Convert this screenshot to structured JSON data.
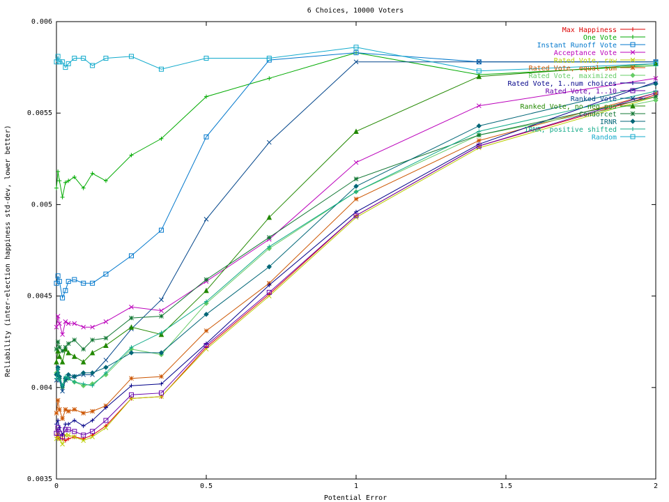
{
  "chart_data": {
    "type": "line",
    "title": "6 Choices, 10000 Voters",
    "xlabel": "Potential Error",
    "ylabel": "Reliability (inter-election happiness std-dev, lower better)",
    "xlim": [
      0,
      2
    ],
    "ylim": [
      0.0035,
      0.006
    ],
    "xticks": [
      0,
      0.5,
      1,
      1.5,
      2
    ],
    "xtick_labels": [
      "0",
      "0.5",
      "1",
      "1.5",
      "2"
    ],
    "yticks": [
      0.0035,
      0.004,
      0.0045,
      0.005,
      0.0055,
      0.006
    ],
    "ytick_labels": [
      "0.0035",
      "0.004",
      "0.0045",
      "0.005",
      "0.0055",
      "0.006"
    ],
    "grid": false,
    "legend_position": "top-right",
    "x": [
      0,
      0.005,
      0.01,
      0.02,
      0.03,
      0.04,
      0.06,
      0.09,
      0.12,
      0.165,
      0.25,
      0.35,
      0.5,
      0.71,
      1.0,
      1.41,
      2.0
    ],
    "series": [
      {
        "name": "Max Happiness",
        "color": "#dd0000",
        "marker": "plus",
        "values": [
          0.00374,
          0.00373,
          0.00372,
          0.00372,
          0.00371,
          0.00372,
          0.00373,
          0.00372,
          0.00374,
          0.00379,
          0.00394,
          0.00395,
          0.00422,
          0.00451,
          0.00494,
          0.00532,
          0.0056
        ]
      },
      {
        "name": "One Vote",
        "color": "#00aa00",
        "marker": "plus",
        "values": [
          0.00509,
          0.00518,
          0.00513,
          0.00504,
          0.00512,
          0.00513,
          0.00515,
          0.00509,
          0.00517,
          0.00513,
          0.00527,
          0.00536,
          0.00559,
          0.00569,
          0.00583,
          0.00571,
          0.00576
        ]
      },
      {
        "name": "Instant Runoff Vote",
        "color": "#0077cc",
        "marker": "square",
        "values": [
          0.00457,
          0.00461,
          0.00458,
          0.00449,
          0.00453,
          0.00458,
          0.00459,
          0.00457,
          0.00457,
          0.00462,
          0.00472,
          0.00486,
          0.00537,
          0.00579,
          0.00583,
          0.00578,
          0.00578
        ]
      },
      {
        "name": "Acceptance Vote",
        "color": "#bb00bb",
        "marker": "cross",
        "values": [
          0.00433,
          0.00439,
          0.00435,
          0.00429,
          0.00436,
          0.00435,
          0.00435,
          0.00433,
          0.00433,
          0.00436,
          0.00444,
          0.00442,
          0.00458,
          0.00481,
          0.00523,
          0.00554,
          0.00569
        ]
      },
      {
        "name": "Rated Vote, raw",
        "color": "#bbcc00",
        "marker": "cross",
        "values": [
          0.00372,
          0.00375,
          0.00372,
          0.00369,
          0.00374,
          0.00374,
          0.00373,
          0.00371,
          0.00373,
          0.00378,
          0.00394,
          0.00395,
          0.00421,
          0.0045,
          0.00493,
          0.00531,
          0.00559
        ]
      },
      {
        "name": "Rated Vote, equal sum",
        "color": "#cc5500",
        "marker": "star",
        "values": [
          0.00386,
          0.00393,
          0.00388,
          0.00383,
          0.00388,
          0.00387,
          0.00388,
          0.00386,
          0.00387,
          0.0039,
          0.00405,
          0.00406,
          0.00431,
          0.00457,
          0.00503,
          0.00535,
          0.00561
        ]
      },
      {
        "name": "Rated Vote, maximized",
        "color": "#66cc66",
        "marker": "diamond",
        "values": [
          0.00408,
          0.00408,
          0.00405,
          0.004,
          0.00404,
          0.00405,
          0.00403,
          0.00401,
          0.00402,
          0.00407,
          0.00421,
          0.00418,
          0.00446,
          0.00476,
          0.00507,
          0.00538,
          0.00557
        ]
      },
      {
        "name": "Rated Vote, 1..num choices",
        "color": "#000088",
        "marker": "plus",
        "values": [
          0.0038,
          0.00382,
          0.00378,
          0.00374,
          0.0038,
          0.0038,
          0.00382,
          0.00379,
          0.00382,
          0.00389,
          0.00401,
          0.00402,
          0.00424,
          0.00456,
          0.00496,
          0.00533,
          0.00567
        ]
      },
      {
        "name": "Rated Vote, 1..10",
        "color": "#6600aa",
        "marker": "square",
        "values": [
          0.00375,
          0.00378,
          0.00375,
          0.00373,
          0.00377,
          0.00377,
          0.00376,
          0.00374,
          0.00376,
          0.00382,
          0.00396,
          0.00397,
          0.00423,
          0.00452,
          0.00494,
          0.00532,
          0.00561
        ]
      },
      {
        "name": "Ranked Vote",
        "color": "#00448a",
        "marker": "cross",
        "values": [
          0.00404,
          0.00409,
          0.00404,
          0.00398,
          0.00404,
          0.00405,
          0.00406,
          0.00407,
          0.00407,
          0.00415,
          0.00432,
          0.00448,
          0.00492,
          0.00534,
          0.00578,
          0.00578,
          0.00578
        ]
      },
      {
        "name": "Ranked Vote, no neg pos",
        "color": "#228800",
        "marker": "triangle",
        "values": [
          0.00414,
          0.0042,
          0.00417,
          0.00414,
          0.00421,
          0.00419,
          0.00417,
          0.00414,
          0.00419,
          0.00423,
          0.00433,
          0.00429,
          0.00453,
          0.00493,
          0.0054,
          0.0057,
          0.00577
        ]
      },
      {
        "name": "Condorcet",
        "color": "#117733",
        "marker": "star",
        "values": [
          0.00421,
          0.00425,
          0.00422,
          0.0042,
          0.00422,
          0.00424,
          0.00426,
          0.00421,
          0.00426,
          0.00427,
          0.00438,
          0.00439,
          0.00459,
          0.00482,
          0.00514,
          0.00538,
          0.00559
        ]
      },
      {
        "name": "IRNR",
        "color": "#006677",
        "marker": "diamond",
        "values": [
          0.00407,
          0.00411,
          0.00406,
          0.00401,
          0.00405,
          0.00407,
          0.00406,
          0.00408,
          0.00408,
          0.00411,
          0.00419,
          0.00419,
          0.0044,
          0.00466,
          0.0051,
          0.00543,
          0.00566
        ]
      },
      {
        "name": "IRNR, positive shifted",
        "color": "#11aa88",
        "marker": "plus",
        "values": [
          0.00405,
          0.0041,
          0.00404,
          0.00401,
          0.00406,
          0.00405,
          0.00403,
          0.00402,
          0.00401,
          0.00408,
          0.00422,
          0.0043,
          0.00447,
          0.00477,
          0.00507,
          0.0054,
          0.00562
        ]
      },
      {
        "name": "Random",
        "color": "#11aacc",
        "marker": "square",
        "values": [
          0.00578,
          0.00581,
          0.00578,
          0.00578,
          0.00575,
          0.00577,
          0.0058,
          0.0058,
          0.00576,
          0.0058,
          0.00581,
          0.00574,
          0.0058,
          0.0058,
          0.00586,
          0.00573,
          0.00577
        ]
      }
    ]
  }
}
